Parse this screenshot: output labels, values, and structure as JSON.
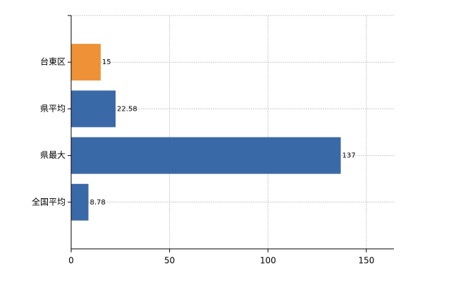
{
  "chart_data": {
    "type": "barh",
    "categories": [
      "台東区",
      "県平均",
      "県最大",
      "全国平均"
    ],
    "values": [
      15,
      22.58,
      137,
      8.78
    ],
    "colors": [
      "#ef9136",
      "#3a69a7",
      "#3a69a7",
      "#3a69a7"
    ],
    "xlim": [
      0,
      164
    ],
    "xticks": [
      0,
      50,
      100,
      150
    ],
    "grid": true
  }
}
